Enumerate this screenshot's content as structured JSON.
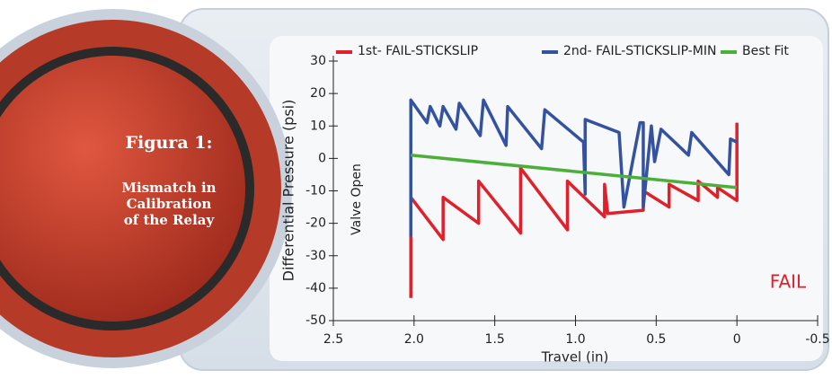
{
  "figure": {
    "label": "Figura 1:",
    "caption": [
      "Mismatch in",
      "Calibration",
      "of the Relay"
    ]
  },
  "chart_data": {
    "type": "line",
    "x_label": "Travel (in)",
    "y_label": "Differential Pressure (psi)",
    "annotations": [
      "Valve Open",
      "FAIL"
    ],
    "xlim": [
      2.5,
      -0.5
    ],
    "xticks": [
      2.5,
      {
        "value": 2,
        "label": "2.0"
      },
      1.5,
      {
        "value": 1,
        "label": "1.0"
      },
      0.5,
      0,
      -0.5
    ],
    "ylim": [
      -50,
      30
    ],
    "yticks": [
      30,
      20,
      10,
      0,
      -10,
      -20,
      -30,
      -40,
      -50
    ],
    "legend": "top",
    "series": [
      {
        "name": "1st- FAIL-STICKSLIP",
        "color": "#e0202a",
        "x": [
          2.02,
          2.02,
          1.82,
          1.82,
          1.6,
          1.6,
          1.34,
          1.34,
          1.05,
          1.05,
          0.82,
          0.82,
          0.8,
          0.58,
          0.58,
          0.42,
          0.42,
          0.24,
          0.24,
          0.12,
          0.12,
          0,
          0
        ],
        "values": [
          -43,
          -12,
          -25,
          -12,
          -20,
          -7,
          -23,
          -3,
          -22,
          -7,
          -18,
          -8,
          -17,
          -16,
          -10,
          -15,
          -8,
          -13,
          -7,
          -12,
          -9,
          -13,
          11
        ]
      },
      {
        "name": "2nd- FAIL-STICKSLIP-MIN",
        "color": "#3452a0",
        "x": [
          2.02,
          2.02,
          1.92,
          1.9,
          1.84,
          1.82,
          1.74,
          1.72,
          1.59,
          1.57,
          1.43,
          1.42,
          1.21,
          1.19,
          0.95,
          0.94,
          0.94,
          0.73,
          0.7,
          0.6,
          0.58,
          0.58,
          0.53,
          0.51,
          0.47,
          0.3,
          0.28,
          0.05,
          0.04,
          0
        ],
        "values": [
          -24,
          18,
          11,
          16,
          10,
          16,
          9,
          17,
          7,
          18,
          4,
          16,
          3,
          15,
          5,
          -11,
          12,
          8,
          -15,
          11,
          11,
          -15,
          10,
          -1,
          9,
          1,
          8,
          -5,
          6,
          5
        ]
      },
      {
        "name": "Best Fit",
        "color": "#4caf3a",
        "x": [
          2.02,
          0
        ],
        "values": [
          1,
          -9
        ]
      }
    ]
  }
}
